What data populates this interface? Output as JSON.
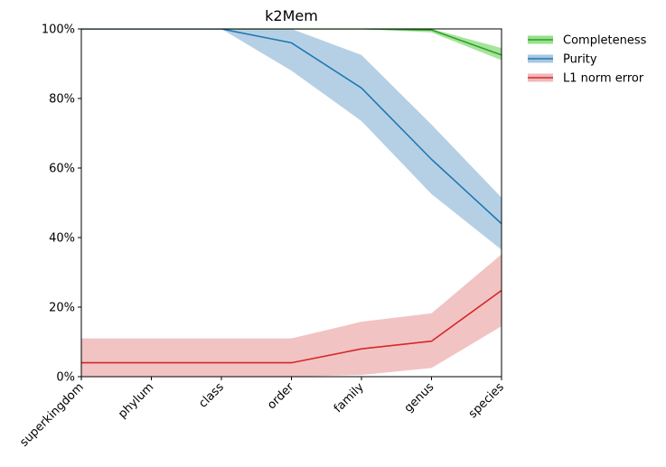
{
  "chart_data": {
    "type": "line",
    "title": "k2Mem",
    "xlabel": "",
    "ylabel": "",
    "categories": [
      "superkingdom",
      "phylum",
      "class",
      "order",
      "family",
      "genus",
      "species"
    ],
    "ylim": [
      0,
      100
    ],
    "yticks": [
      0,
      20,
      40,
      60,
      80,
      100
    ],
    "ytick_labels": [
      "0%",
      "20%",
      "40%",
      "60%",
      "80%",
      "100%"
    ],
    "grid": false,
    "legend_position": "outside top-right",
    "series": [
      {
        "name": "Completeness",
        "color": "#2ca02c",
        "band_color": "#98df8a",
        "values": [
          100,
          100,
          100,
          100,
          100,
          99.7,
          92.5
        ],
        "lower": [
          100,
          100,
          100,
          100,
          100,
          99.0,
          91.0
        ],
        "upper": [
          100,
          100,
          100,
          100,
          100,
          100,
          94.5
        ]
      },
      {
        "name": "Purity",
        "color": "#1f77b4",
        "band_color": "#a8c8e0",
        "values": [
          100,
          100,
          100,
          96,
          83,
          62.5,
          44
        ],
        "lower": [
          100,
          100,
          100,
          88,
          73.5,
          52.5,
          36.5
        ],
        "upper": [
          100,
          100,
          100,
          100,
          92.5,
          72.5,
          51.5
        ]
      },
      {
        "name": "L1 norm error",
        "color": "#d62728",
        "band_color": "#f0b8b8",
        "values": [
          4,
          4,
          4,
          4,
          8,
          10.2,
          24.8
        ],
        "lower": [
          0,
          0,
          0,
          0,
          0.5,
          2.5,
          14.5
        ],
        "upper": [
          11,
          11,
          11,
          11,
          15.8,
          18.2,
          35.2
        ]
      }
    ]
  }
}
